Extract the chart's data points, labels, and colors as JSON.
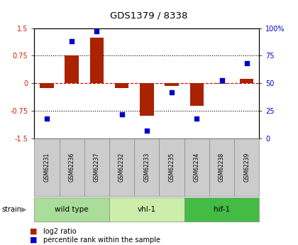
{
  "title": "GDS1379 / 8338",
  "samples": [
    "GSM62231",
    "GSM62236",
    "GSM62237",
    "GSM62232",
    "GSM62233",
    "GSM62235",
    "GSM62234",
    "GSM62238",
    "GSM62239"
  ],
  "log2_ratio": [
    -0.13,
    0.75,
    1.25,
    -0.12,
    -0.88,
    -0.08,
    -0.62,
    -0.02,
    0.13
  ],
  "percentile_rank": [
    18,
    88,
    97,
    22,
    7,
    42,
    18,
    53,
    68
  ],
  "groups": [
    {
      "label": "wild type",
      "indices": [
        0,
        1,
        2
      ],
      "color": "#aadd99"
    },
    {
      "label": "vhl-1",
      "indices": [
        3,
        4,
        5
      ],
      "color": "#cceeaa"
    },
    {
      "label": "hif-1",
      "indices": [
        6,
        7,
        8
      ],
      "color": "#44bb44"
    }
  ],
  "ylim": [
    -1.5,
    1.5
  ],
  "yticks_left": [
    -1.5,
    -0.75,
    0,
    0.75,
    1.5
  ],
  "yticks_right": [
    0,
    25,
    50,
    75,
    100
  ],
  "bar_color": "#aa2200",
  "scatter_color": "#0000cc",
  "bg_color": "#ffffff",
  "plot_bg": "#ffffff",
  "zero_line_color": "#cc0000",
  "tick_label_color_left": "#cc2200",
  "tick_label_color_right": "#0000cc",
  "label_box_color": "#cccccc",
  "group_colors": [
    "#aadd99",
    "#cceeaa",
    "#44bb44"
  ]
}
